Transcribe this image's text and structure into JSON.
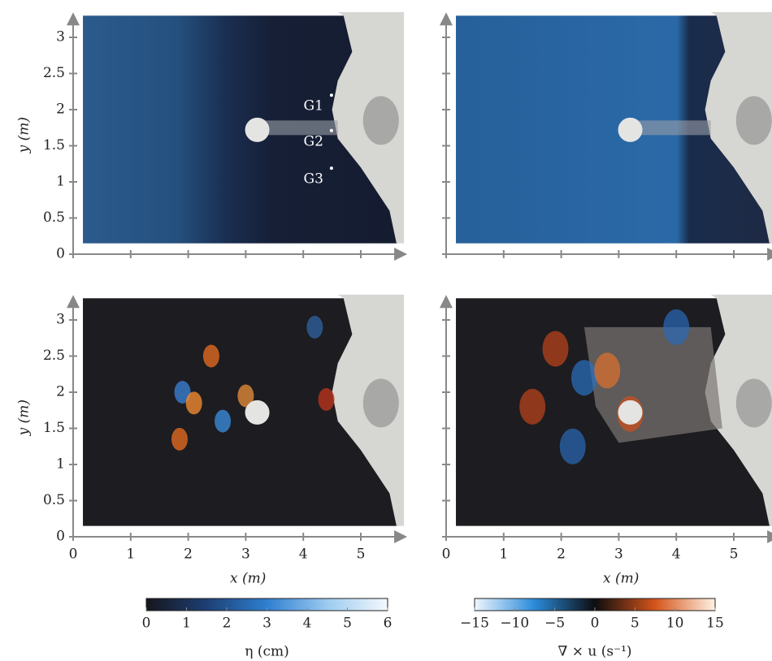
{
  "figure": {
    "axes": {
      "xlim": [
        0,
        5.75
      ],
      "ylim": [
        0,
        3.3
      ],
      "xticks": [
        0,
        1,
        2,
        3,
        4,
        5
      ],
      "yticks": [
        0,
        0.5,
        1,
        1.5,
        2,
        2.5,
        3
      ],
      "xlabel": "x (m)",
      "ylabel": "y (m)"
    },
    "probes": [
      {
        "label": "G1",
        "x": 4.49,
        "y": 2.2
      },
      {
        "label": "G2",
        "x": 4.49,
        "y": 1.71
      },
      {
        "label": "G3",
        "x": 4.49,
        "y": 1.19
      }
    ],
    "colorbars": [
      {
        "label": "η (cm)",
        "lim": [
          0,
          6
        ],
        "ticks": [
          0,
          1,
          2,
          3,
          4,
          5,
          6
        ],
        "colors": [
          "#16161c",
          "#1d3f73",
          "#2f7fd0",
          "#9ccbf0",
          "#f4f8fc"
        ]
      },
      {
        "label": "∇ × u (s⁻¹)",
        "lim": [
          -15,
          15
        ],
        "ticks": [
          {
            "value": -15,
            "label": "−15"
          },
          {
            "value": -10,
            "label": "−10"
          },
          {
            "value": -5,
            "label": "−5"
          },
          0,
          5,
          10,
          15
        ],
        "colors": [
          "#eef6ff",
          "#2a8ad8",
          "#0d0d10",
          "#d4541a",
          "#fff2e4"
        ]
      }
    ]
  }
}
